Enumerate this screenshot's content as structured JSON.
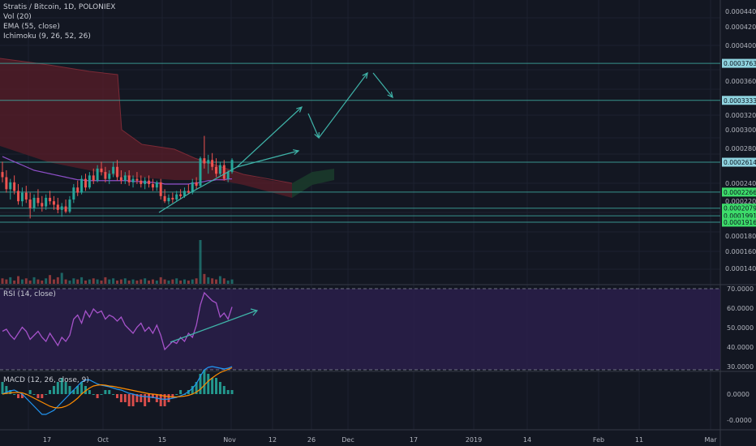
{
  "legend": {
    "title": "Stratis / Bitcoin, 1D, POLONIEX",
    "vol": "Vol (20)",
    "ema": "EMA (55, close)",
    "ichimoku": "Ichimoku (9, 26, 52, 26)",
    "rsi": "RSI (14, close)",
    "macd": "MACD (12, 26, close, 9)"
  },
  "colors": {
    "background": "#131722",
    "up": "#26a69a",
    "down": "#ef5350",
    "ema": "#8e4fc9",
    "cloud": "#5a1e28",
    "cloud_green": "#1b3a2b",
    "hline": "#3fa9a0",
    "arrow": "#3fb3a8",
    "rsi_line": "#a552c9",
    "rsi_band": "#2a1f4a",
    "macd_line": "#2196f3",
    "signal_line": "#ff8c00"
  },
  "chart_data": [
    {
      "type": "candlestick",
      "pane": "price",
      "title": "Stratis / Bitcoin, 1D, POLONIEX",
      "y_ticks": [
        "0.00044000",
        "0.00042000",
        "0.00040000",
        "0.00036000",
        "0.00032000",
        "0.00030000",
        "0.00028000",
        "0.00024000",
        "0.00022000",
        "0.00018000",
        "0.00016000",
        "0.00014000"
      ],
      "ylim": [
        0.00012,
        0.00045
      ],
      "x_ticks": [
        "17",
        "Oct",
        "15",
        "Nov",
        "12",
        "26",
        "Dec",
        "17",
        "2019",
        "14",
        "Feb",
        "11",
        "Mar"
      ],
      "horizontal_lines": [
        0.00037637,
        0.00033332,
        0.0002614,
        0.00022663,
        0.00020797,
        0.0001991,
        0.00019168
      ],
      "price_labels": [
        {
          "value": "0.00037637",
          "style": "teal"
        },
        {
          "value": "0.00033332",
          "style": "teal"
        },
        {
          "value": "0.00026140",
          "style": "teal"
        },
        {
          "value": "0.00022663",
          "style": "green"
        },
        {
          "value": "0.00020797",
          "style": "green"
        },
        {
          "value": "0.00019910",
          "style": "green"
        },
        {
          "value": "0.00019168",
          "style": "green"
        }
      ],
      "candles": [
        [
          0.00025,
          0.000262,
          0.000238,
          0.000244
        ],
        [
          0.000244,
          0.000252,
          0.000226,
          0.00023
        ],
        [
          0.00023,
          0.000242,
          0.000218,
          0.000238
        ],
        [
          0.000238,
          0.000246,
          0.000224,
          0.000228
        ],
        [
          0.000228,
          0.000236,
          0.000212,
          0.000216
        ],
        [
          0.000216,
          0.000232,
          0.00021,
          0.000226
        ],
        [
          0.000226,
          0.000234,
          0.000214,
          0.000218
        ],
        [
          0.000218,
          0.000226,
          0.000196,
          0.000208
        ],
        [
          0.000208,
          0.000224,
          0.000204,
          0.00022
        ],
        [
          0.00022,
          0.00023,
          0.00021,
          0.000214
        ],
        [
          0.000214,
          0.000222,
          0.000204,
          0.00021
        ],
        [
          0.00021,
          0.000224,
          0.000206,
          0.00022
        ],
        [
          0.00022,
          0.000228,
          0.000212,
          0.000216
        ],
        [
          0.000216,
          0.000222,
          0.000206,
          0.000212
        ],
        [
          0.000212,
          0.00022,
          0.000202,
          0.000206
        ],
        [
          0.000206,
          0.000214,
          0.000198,
          0.00021
        ],
        [
          0.00021,
          0.000218,
          0.000202,
          0.000204
        ],
        [
          0.000204,
          0.000222,
          0.000202,
          0.000218
        ],
        [
          0.000218,
          0.000236,
          0.000214,
          0.000232
        ],
        [
          0.000232,
          0.00024,
          0.000222,
          0.000226
        ],
        [
          0.000226,
          0.000246,
          0.000224,
          0.000242
        ],
        [
          0.000242,
          0.000248,
          0.000228,
          0.000232
        ],
        [
          0.000232,
          0.00025,
          0.00023,
          0.000246
        ],
        [
          0.000246,
          0.000254,
          0.000236,
          0.00024
        ],
        [
          0.00024,
          0.000258,
          0.000238,
          0.000254
        ],
        [
          0.000254,
          0.000262,
          0.000246,
          0.00025
        ],
        [
          0.00025,
          0.000256,
          0.000238,
          0.000242
        ],
        [
          0.000242,
          0.000252,
          0.000236,
          0.000248
        ],
        [
          0.000248,
          0.000262,
          0.000244,
          0.000256
        ],
        [
          0.000256,
          0.000264,
          0.00024,
          0.000244
        ],
        [
          0.000244,
          0.000252,
          0.000236,
          0.00024
        ],
        [
          0.00024,
          0.00025,
          0.000236,
          0.000246
        ],
        [
          0.000246,
          0.000252,
          0.000234,
          0.000238
        ],
        [
          0.000238,
          0.000246,
          0.000232,
          0.000242
        ],
        [
          0.000242,
          0.00025,
          0.000236,
          0.00024
        ],
        [
          0.00024,
          0.000246,
          0.000232,
          0.000236
        ],
        [
          0.000236,
          0.000244,
          0.00023,
          0.00024
        ],
        [
          0.00024,
          0.000246,
          0.000232,
          0.000236
        ],
        [
          0.000236,
          0.000242,
          0.000228,
          0.000232
        ],
        [
          0.000232,
          0.00024,
          0.000228,
          0.000238
        ],
        [
          0.000238,
          0.000242,
          0.000218,
          0.000222
        ],
        [
          0.000222,
          0.00023,
          0.000214,
          0.000216
        ],
        [
          0.000216,
          0.000224,
          0.000212,
          0.00022
        ],
        [
          0.00022,
          0.000226,
          0.000214,
          0.000218
        ],
        [
          0.000218,
          0.000228,
          0.000216,
          0.000224
        ],
        [
          0.000224,
          0.00023,
          0.000218,
          0.000222
        ],
        [
          0.000222,
          0.000232,
          0.00022,
          0.000228
        ],
        [
          0.000228,
          0.000236,
          0.000224,
          0.000226
        ],
        [
          0.000226,
          0.000242,
          0.000224,
          0.000238
        ],
        [
          0.000238,
          0.000244,
          0.00023,
          0.000234
        ],
        [
          0.000234,
          0.000268,
          0.000232,
          0.000266
        ],
        [
          0.000266,
          0.000292,
          0.000254,
          0.00026
        ],
        [
          0.00026,
          0.00027,
          0.000248,
          0.000264
        ],
        [
          0.000264,
          0.000272,
          0.000252,
          0.000256
        ],
        [
          0.000256,
          0.000266,
          0.000244,
          0.000248
        ],
        [
          0.000248,
          0.000262,
          0.000246,
          0.000258
        ],
        [
          0.000258,
          0.000264,
          0.00024,
          0.000242
        ],
        [
          0.000242,
          0.000252,
          0.000238,
          0.00025
        ],
        [
          0.00025,
          0.000266,
          0.000248,
          0.000264
        ]
      ],
      "ema": [
        0.000268,
        0.000266,
        0.000264,
        0.000262,
        0.00026,
        0.000258,
        0.000256,
        0.000254,
        0.000252,
        0.000251,
        0.00025,
        0.000249,
        0.000248,
        0.000247,
        0.000246,
        0.000245,
        0.000244,
        0.000243,
        0.000242,
        0.000241,
        0.000241,
        0.00024,
        0.00024,
        0.00024,
        0.00024,
        0.00024,
        0.00024,
        0.00024,
        0.00024,
        0.00024,
        0.00024,
        0.00024,
        0.00024,
        0.000239,
        0.000239,
        0.000239,
        0.000238,
        0.000238,
        0.000238,
        0.000237,
        0.000237,
        0.000236,
        0.000236,
        0.000236,
        0.000236,
        0.000236,
        0.000236,
        0.000236,
        0.000237,
        0.000237,
        0.000238,
        0.000239,
        0.00024,
        0.00024,
        0.000241,
        0.000241,
        0.000241,
        0.000242,
        0.000242
      ]
    },
    {
      "type": "bar",
      "pane": "volume",
      "title": "Vol (20)",
      "values": [
        5,
        4,
        6,
        3,
        7,
        4,
        5,
        3,
        6,
        4,
        3,
        5,
        8,
        4,
        6,
        10,
        4,
        3,
        5,
        4,
        6,
        3,
        4,
        5,
        4,
        3,
        6,
        4,
        5,
        3,
        4,
        5,
        3,
        4,
        3,
        4,
        5,
        3,
        4,
        3,
        6,
        4,
        3,
        4,
        5,
        3,
        4,
        3,
        4,
        5,
        40,
        9,
        6,
        5,
        4,
        7,
        5,
        3,
        4
      ]
    },
    {
      "type": "line",
      "pane": "rsi",
      "title": "RSI (14, close)",
      "y_ticks": [
        "70.0000",
        "60.0000",
        "50.0000",
        "40.0000",
        "30.0000"
      ],
      "ylim": [
        30,
        70
      ],
      "values": [
        49,
        50,
        47,
        45,
        48,
        51,
        49,
        45,
        47,
        49,
        46,
        44,
        48,
        45,
        42,
        46,
        44,
        47,
        55,
        57,
        53,
        59,
        56,
        60,
        58,
        59,
        55,
        57,
        56,
        54,
        56,
        52,
        50,
        48,
        51,
        53,
        49,
        51,
        48,
        52,
        47,
        40,
        42,
        44,
        43,
        46,
        44,
        48,
        46,
        52,
        62,
        68,
        66,
        64,
        63,
        56,
        58,
        55,
        61
      ],
      "trendline_annotation": "rising"
    },
    {
      "type": "bar",
      "pane": "macd",
      "title": "MACD (12, 26, close, 9)",
      "y_ticks": [
        "0.0000",
        "-0.0000"
      ],
      "histogram": [
        3,
        2,
        1,
        0,
        -1,
        -1,
        0,
        1,
        0,
        -1,
        -1,
        0,
        1,
        2,
        3,
        4,
        3,
        2,
        1,
        2,
        3,
        2,
        1,
        0,
        -1,
        0,
        1,
        1,
        0,
        -1,
        -2,
        -2,
        -3,
        -3,
        -2,
        -2,
        -3,
        -2,
        -1,
        -2,
        -3,
        -3,
        -2,
        -1,
        0,
        1,
        0,
        1,
        2,
        3,
        5,
        6,
        5,
        4,
        4,
        3,
        2,
        1,
        1
      ],
      "macd": [
        0,
        0.5,
        0.8,
        1,
        0.5,
        0,
        -1,
        -2,
        -3,
        -4,
        -5,
        -5,
        -4.5,
        -4,
        -3,
        -2,
        -1,
        0,
        1,
        2,
        3,
        3.5,
        3.5,
        3,
        2.5,
        2.2,
        2,
        1.8,
        1.5,
        1.2,
        1,
        0.6,
        0.2,
        0,
        -0.3,
        -0.5,
        -0.6,
        -0.7,
        -0.8,
        -1,
        -1.2,
        -1.3,
        -1.2,
        -1,
        -0.8,
        -0.4,
        0,
        0.6,
        1.4,
        2.6,
        4.4,
        6,
        6.6,
        6.8,
        6.6,
        6.4,
        6.2,
        6.4,
        6.8
      ],
      "signal": [
        0,
        0.2,
        0.3,
        0.4,
        0.4,
        0.3,
        0,
        -0.5,
        -1,
        -1.5,
        -2,
        -2.5,
        -3,
        -3.3,
        -3.4,
        -3.3,
        -3,
        -2.5,
        -1.8,
        -1,
        0,
        0.8,
        1.5,
        2,
        2.2,
        2.3,
        2.2,
        2,
        1.9,
        1.7,
        1.5,
        1.3,
        1.1,
        0.9,
        0.7,
        0.5,
        0.3,
        0.1,
        0,
        -0.1,
        -0.3,
        -0.5,
        -0.6,
        -0.7,
        -0.7,
        -0.6,
        -0.5,
        -0.3,
        0,
        0.5,
        1.2,
        2.2,
        3.2,
        4,
        4.7,
        5.3,
        5.7,
        6.1,
        6.5
      ]
    }
  ]
}
